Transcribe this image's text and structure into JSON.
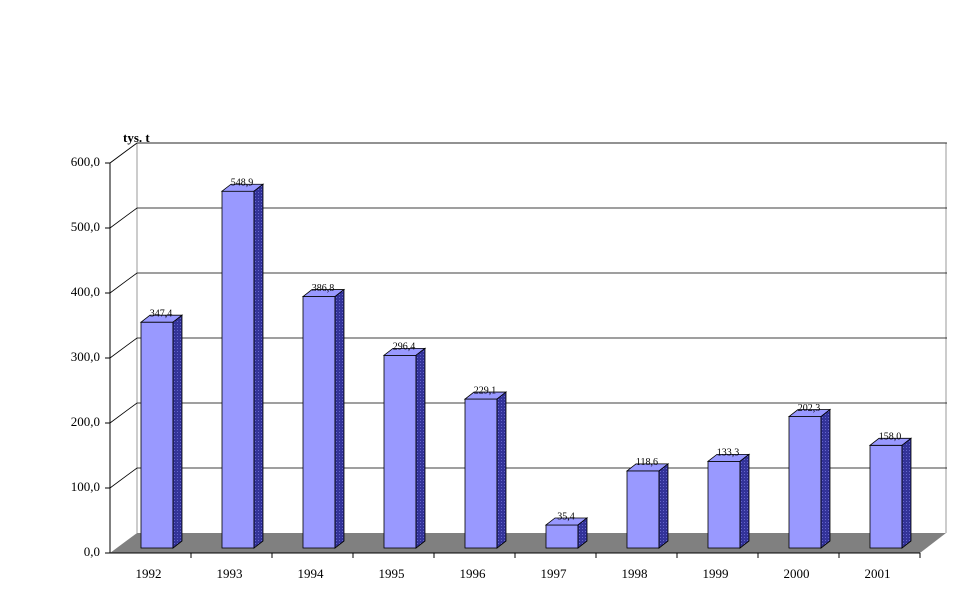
{
  "chart_data": {
    "type": "bar3d",
    "y_label": "tys. t",
    "categories": [
      "1992",
      "1993",
      "1994",
      "1995",
      "1996",
      "1997",
      "1998",
      "1999",
      "2000",
      "2001"
    ],
    "values": [
      347.4,
      548.9,
      386.8,
      296.4,
      229.1,
      35.4,
      118.6,
      133.3,
      202.3,
      158.0
    ],
    "value_labels": [
      "347,4",
      "548,9",
      "386,8",
      "296,4",
      "229,1",
      "35,4",
      "118,6",
      "133,3",
      "202,3",
      "158,0"
    ],
    "color": "#9999ff",
    "ylim": [
      0,
      600
    ],
    "yticks": [
      {
        "value": 0,
        "label": "0,0"
      },
      {
        "value": 100,
        "label": "100,0"
      },
      {
        "value": 200,
        "label": "200,0"
      },
      {
        "value": 300,
        "label": "300,0"
      },
      {
        "value": 400,
        "label": "400,0"
      },
      {
        "value": 500,
        "label": "500,0"
      },
      {
        "value": 600,
        "label": "600,0"
      }
    ],
    "grid": true
  }
}
